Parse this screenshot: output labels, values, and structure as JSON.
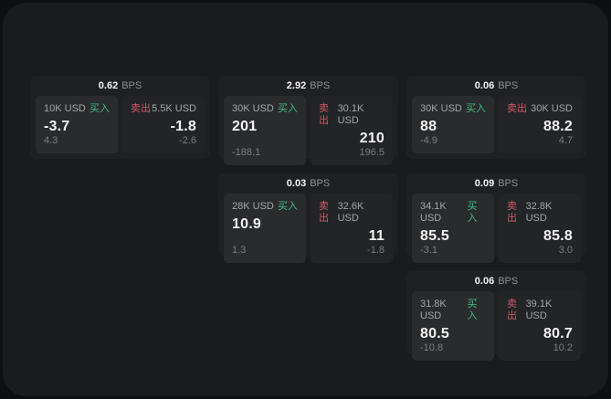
{
  "labels": {
    "buy": "买入",
    "sell": "卖出",
    "bps": "BPS"
  },
  "colors": {
    "buy": "#40bd80",
    "sell": "#d25966"
  },
  "cards": [
    {
      "bps": "0.62",
      "buy": {
        "amount": "10K USD",
        "value": "-3.7",
        "sub": "4.3"
      },
      "sell": {
        "amount": "5.5K USD",
        "value": "-1.8",
        "sub": "-2.6"
      }
    },
    {
      "bps": "2.92",
      "buy": {
        "amount": "30K USD",
        "value": "201",
        "sub": "-188.1"
      },
      "sell": {
        "amount": "30.1K USD",
        "value": "210",
        "sub": "196.5"
      }
    },
    {
      "bps": "0.06",
      "buy": {
        "amount": "30K USD",
        "value": "88",
        "sub": "-4.9"
      },
      "sell": {
        "amount": "30K USD",
        "value": "88.2",
        "sub": "4.7"
      }
    },
    {
      "bps": "0.03",
      "buy": {
        "amount": "28K USD",
        "value": "10.9",
        "sub": "1.3"
      },
      "sell": {
        "amount": "32.6K USD",
        "value": "11",
        "sub": "-1.8"
      }
    },
    {
      "bps": "0.09",
      "buy": {
        "amount": "34.1K USD",
        "value": "85.5",
        "sub": "-3.1"
      },
      "sell": {
        "amount": "32.8K USD",
        "value": "85.8",
        "sub": "3.0"
      }
    },
    {
      "bps": "0.06",
      "buy": {
        "amount": "31.8K USD",
        "value": "80.5",
        "sub": "-10.8"
      },
      "sell": {
        "amount": "39.1K USD",
        "value": "80.7",
        "sub": "10.2"
      }
    }
  ]
}
